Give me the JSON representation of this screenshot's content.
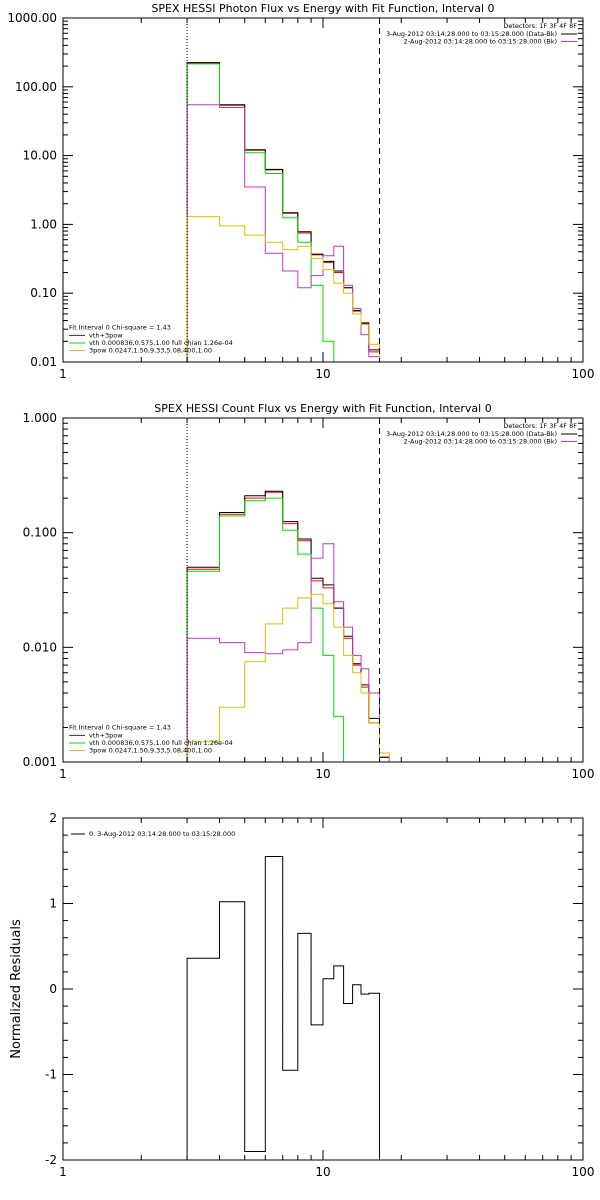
{
  "colors": {
    "black": "#000000",
    "red": "#ff0000",
    "green": "#00dd00",
    "magenta": "#cc33cc",
    "yellow": "#e0c000"
  },
  "chart_data": [
    {
      "type": "line",
      "title": "SPEX HESSI Photon Flux vs Energy with Fit Function, Interval 0",
      "xscale": "log",
      "yscale": "log",
      "xlim": [
        1,
        100
      ],
      "ylim": [
        0.01,
        1000
      ],
      "xticks": [
        1,
        10,
        100
      ],
      "xtick_labels": [
        "1",
        "10",
        "100"
      ],
      "yticks": [
        0.01,
        0.1,
        1,
        10,
        100,
        1000
      ],
      "ytick_labels": [
        "0.01",
        "0.10",
        "1.00",
        "10.00",
        "100.00",
        "1000.00"
      ],
      "vlines": [
        {
          "x": 3,
          "style": "dotted"
        },
        {
          "x": 16.5,
          "style": "dashed"
        }
      ],
      "legend_top": {
        "header": "Detectors: 1F 3F 4F 8F",
        "lines": [
          {
            "text": "3-Aug-2012 03:14:28.000 to 03:15:28.000 (Data-Bk)",
            "color": "#000000"
          },
          {
            "text": "2-Aug-2012 03:14:28.000 to 03:15:28.000 (Bk)",
            "color": "#cc33cc"
          }
        ]
      },
      "legend_bottom": {
        "header": "Fit Interval 0    Chi-square = 1.43",
        "lines": [
          {
            "text": "vth+3pow",
            "color": "#ff0000"
          },
          {
            "text": "vth 0.000836,0.575,1.00  full chian 1.26e-04",
            "color": "#00dd00"
          },
          {
            "text": "3pow 0.0247,1.50,9.33,5.08,400,1.00",
            "color": "#e0c000"
          }
        ]
      },
      "edges": [
        3,
        4,
        5,
        6,
        7,
        8,
        9,
        10,
        11,
        12,
        13,
        14,
        15,
        16.5,
        18,
        19.5
      ],
      "series": [
        {
          "color": "#ff0000",
          "values": [
            220,
            54,
            12,
            6.2,
            1.45,
            0.75,
            0.36,
            0.28,
            0.2,
            0.12,
            0.055,
            0.036,
            0.014,
            0.005,
            null
          ]
        },
        {
          "color": "#000000",
          "values": [
            225,
            55,
            12.2,
            6.3,
            1.48,
            0.78,
            0.37,
            0.29,
            0.21,
            0.12,
            0.056,
            0.037,
            0.015,
            0.005,
            null
          ]
        },
        {
          "color": "#00dd00",
          "values": [
            215,
            50,
            11,
            5.5,
            1.25,
            0.55,
            0.13,
            0.02,
            0.004,
            null,
            null,
            null,
            null,
            null,
            null
          ]
        },
        {
          "color": "#cc33cc",
          "values": [
            55,
            50,
            3.5,
            0.38,
            0.21,
            0.12,
            0.18,
            0.35,
            0.48,
            0.13,
            0.06,
            0.025,
            0.012,
            null,
            null
          ]
        },
        {
          "color": "#e0c000",
          "values": [
            1.3,
            0.95,
            0.7,
            0.55,
            0.43,
            0.48,
            0.32,
            0.22,
            0.14,
            0.1,
            0.05,
            0.035,
            0.018,
            0.009,
            0.01
          ]
        }
      ]
    },
    {
      "type": "line",
      "title": "SPEX HESSI Count Flux vs Energy with Fit Function, Interval 0",
      "xscale": "log",
      "yscale": "log",
      "xlim": [
        1,
        100
      ],
      "ylim": [
        0.001,
        1
      ],
      "xticks": [
        1,
        10,
        100
      ],
      "xtick_labels": [
        "1",
        "10",
        "100"
      ],
      "yticks": [
        0.001,
        0.01,
        0.1,
        1
      ],
      "ytick_labels": [
        "0.001",
        "0.010",
        "0.100",
        "1.000"
      ],
      "vlines": [
        {
          "x": 3,
          "style": "dotted"
        },
        {
          "x": 16.5,
          "style": "dashed"
        }
      ],
      "legend_top": {
        "header": "Detectors: 1F 3F 4F 8F",
        "lines": [
          {
            "text": "3-Aug-2012 03:14:28.000 to 03:15:28.000 (Data-Bk)",
            "color": "#000000"
          },
          {
            "text": "2-Aug-2012 03:14:28.000 to 03:15:28.000 (Bk)",
            "color": "#cc33cc"
          }
        ]
      },
      "legend_bottom": {
        "header": "Fit Interval 0    Chi-square = 1.43",
        "lines": [
          {
            "text": "vth+3pow",
            "color": "#ff0000"
          },
          {
            "text": "vth 0.000836,0.575,1.00  full chian 1.26e-04",
            "color": "#00dd00"
          },
          {
            "text": "3pow 0.0247,1.50,9.33,5.08,400,1.00",
            "color": "#e0c000"
          }
        ]
      },
      "edges": [
        3,
        4,
        5,
        6,
        7,
        8,
        9,
        10,
        11,
        12,
        13,
        14,
        15,
        16.5,
        18,
        19.5
      ],
      "series": [
        {
          "color": "#ff0000",
          "values": [
            0.048,
            0.145,
            0.2,
            0.225,
            0.12,
            0.085,
            0.038,
            0.033,
            0.022,
            0.012,
            0.007,
            0.0045,
            0.0022,
            0.0011,
            null
          ]
        },
        {
          "color": "#000000",
          "values": [
            0.05,
            0.15,
            0.21,
            0.23,
            0.125,
            0.088,
            0.04,
            0.035,
            0.022,
            0.0125,
            0.0072,
            0.0047,
            0.0024,
            0.0011,
            null
          ]
        },
        {
          "color": "#00dd00",
          "values": [
            0.046,
            0.14,
            0.19,
            0.2,
            0.105,
            0.065,
            0.022,
            0.0085,
            0.0025,
            0.0009,
            null,
            null,
            null,
            null,
            null
          ]
        },
        {
          "color": "#cc33cc",
          "values": [
            0.012,
            0.011,
            0.009,
            0.0088,
            0.0095,
            0.011,
            0.06,
            0.08,
            0.025,
            0.015,
            0.0085,
            0.0065,
            0.004,
            null,
            null
          ]
        },
        {
          "color": "#e0c000",
          "values": [
            0.0015,
            0.003,
            0.0075,
            0.016,
            0.022,
            0.027,
            0.029,
            0.024,
            0.015,
            0.0085,
            0.006,
            0.004,
            0.0022,
            0.0012,
            0.001
          ]
        }
      ]
    },
    {
      "type": "line",
      "title": "",
      "ylabel": "Normalized Residuals",
      "xscale": "log",
      "yscale": "linear",
      "xlim": [
        1,
        100
      ],
      "ylim": [
        -2,
        2
      ],
      "xticks": [
        1,
        10,
        100
      ],
      "xtick_labels": [
        "1",
        "10",
        "100"
      ],
      "yticks": [
        -2,
        -1,
        0,
        1,
        2
      ],
      "ytick_labels": [
        "-2",
        "-1",
        "0",
        "1",
        "2"
      ],
      "legend": {
        "text": "0. 3-Aug-2012 03:14:28.000 to 03:15:28.000",
        "color": "#000000"
      },
      "edges": [
        3,
        4,
        5,
        6,
        7,
        8,
        9,
        10,
        11,
        12,
        13,
        14,
        15,
        16.5
      ],
      "series": [
        {
          "color": "#000000",
          "values": [
            0.36,
            1.02,
            -1.9,
            1.55,
            -0.95,
            0.65,
            -0.42,
            0.12,
            0.27,
            -0.17,
            0.05,
            -0.06,
            -0.05
          ]
        }
      ]
    }
  ]
}
